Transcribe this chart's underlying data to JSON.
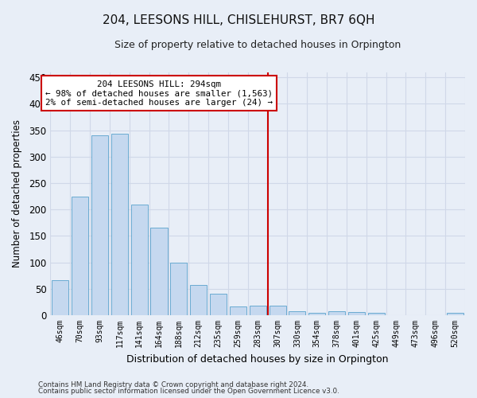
{
  "title": "204, LEESONS HILL, CHISLEHURST, BR7 6QH",
  "subtitle": "Size of property relative to detached houses in Orpington",
  "xlabel": "Distribution of detached houses by size in Orpington",
  "ylabel": "Number of detached properties",
  "bar_labels": [
    "46sqm",
    "70sqm",
    "93sqm",
    "117sqm",
    "141sqm",
    "164sqm",
    "188sqm",
    "212sqm",
    "235sqm",
    "259sqm",
    "283sqm",
    "307sqm",
    "330sqm",
    "354sqm",
    "378sqm",
    "401sqm",
    "425sqm",
    "449sqm",
    "473sqm",
    "496sqm",
    "520sqm"
  ],
  "bar_values": [
    67,
    224,
    341,
    344,
    210,
    166,
    99,
    57,
    41,
    17,
    18,
    18,
    7,
    5,
    8,
    6,
    5,
    0,
    0,
    0,
    4
  ],
  "bar_color": "#c5d8ef",
  "bar_edge_color": "#6aabd2",
  "ylim": [
    0,
    460
  ],
  "yticks": [
    0,
    50,
    100,
    150,
    200,
    250,
    300,
    350,
    400,
    450
  ],
  "annotation_title": "204 LEESONS HILL: 294sqm",
  "annotation_line1": "← 98% of detached houses are smaller (1,563)",
  "annotation_line2": "2% of semi-detached houses are larger (24) →",
  "vline_color": "#cc0000",
  "annotation_box_color": "#ffffff",
  "annotation_box_edge": "#cc0000",
  "background_color": "#e8eef7",
  "grid_color": "#d0d8e8",
  "title_fontsize": 11,
  "subtitle_fontsize": 9,
  "footnote1": "Contains HM Land Registry data © Crown copyright and database right 2024.",
  "footnote2": "Contains public sector information licensed under the Open Government Licence v3.0."
}
